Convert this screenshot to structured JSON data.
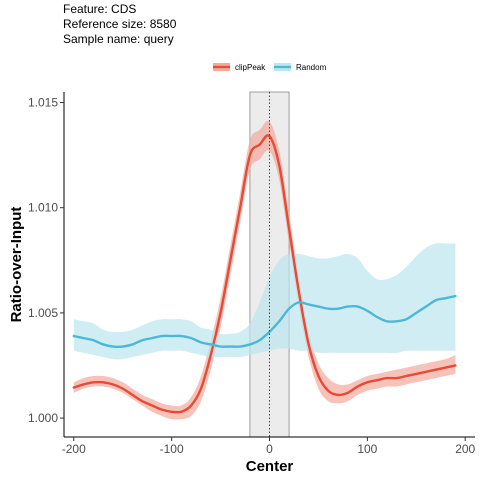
{
  "header": {
    "feature": "Feature: CDS",
    "reference_size": "Reference size: 8580",
    "sample_name": "Sample name: query"
  },
  "chart_data": {
    "type": "line",
    "title": "",
    "xlabel": "Center",
    "ylabel": "Ratio-over-Input",
    "xlim": [
      -210,
      210
    ],
    "ylim": [
      0.9991,
      1.0155
    ],
    "xticks": [
      -200,
      -100,
      0,
      100,
      200
    ],
    "xtick_labels": [
      "-200",
      "-100",
      "0",
      "100",
      "200"
    ],
    "yticks": [
      1.0,
      1.005,
      1.01,
      1.015
    ],
    "ytick_labels": [
      "1.000",
      "1.005",
      "1.010",
      "1.015"
    ],
    "grid": false,
    "legend_position": "top",
    "highlight_region": [
      -20,
      20
    ],
    "center_line_x": 0,
    "colors": {
      "highlight_fill": "#e6e6e6",
      "highlight_stroke": "#888888",
      "center_line": "#3333dd"
    },
    "series": [
      {
        "name": "clipPeak",
        "color": "#e64b35",
        "band_color": "#f4a89c",
        "x": [
          -200,
          -190,
          -180,
          -170,
          -160,
          -150,
          -140,
          -130,
          -120,
          -110,
          -100,
          -90,
          -80,
          -70,
          -60,
          -50,
          -40,
          -30,
          -20,
          -10,
          0,
          10,
          20,
          30,
          40,
          50,
          60,
          70,
          80,
          90,
          100,
          110,
          120,
          130,
          140,
          150,
          160,
          170,
          180,
          190
        ],
        "y": [
          1.00145,
          1.0016,
          1.0017,
          1.0017,
          1.0016,
          1.0014,
          1.0011,
          1.0008,
          1.0006,
          1.0004,
          1.0003,
          1.0003,
          1.0006,
          1.0014,
          1.003,
          1.005,
          1.0075,
          1.01,
          1.0125,
          1.013,
          1.0134,
          1.012,
          1.009,
          1.006,
          1.0035,
          1.002,
          1.0013,
          1.0011,
          1.0012,
          1.0015,
          1.0017,
          1.0018,
          1.0019,
          1.0019,
          1.002,
          1.0021,
          1.0022,
          1.0023,
          1.0024,
          1.0025
        ],
        "lower": [
          1.0012,
          1.0014,
          1.0015,
          1.0015,
          1.0014,
          1.0012,
          1.0009,
          1.0006,
          1.0003,
          1.0001,
          0.99995,
          0.99995,
          1.0001,
          1.0008,
          1.0023,
          1.0043,
          1.0068,
          1.0093,
          1.0118,
          1.0123,
          1.0127,
          1.0113,
          1.0083,
          1.0053,
          1.0029,
          1.0014,
          1.0008,
          1.0007,
          1.0008,
          1.0011,
          1.0013,
          1.0014,
          1.0015,
          1.0015,
          1.0016,
          1.0017,
          1.0018,
          1.0019,
          1.002,
          1.0021
        ],
        "upper": [
          1.0017,
          1.0019,
          1.002,
          1.002,
          1.0019,
          1.0017,
          1.0014,
          1.0011,
          1.0009,
          1.0007,
          1.0006,
          1.0006,
          1.001,
          1.002,
          1.0037,
          1.0057,
          1.0082,
          1.0107,
          1.0132,
          1.0137,
          1.0141,
          1.0127,
          1.0097,
          1.0067,
          1.0041,
          1.0026,
          1.0019,
          1.0016,
          1.0016,
          1.0018,
          1.002,
          1.0021,
          1.0022,
          1.0023,
          1.0024,
          1.0025,
          1.0026,
          1.0027,
          1.0028,
          1.003
        ]
      },
      {
        "name": "Random",
        "color": "#4db8d6",
        "band_color": "#bde5f0",
        "x": [
          -200,
          -190,
          -180,
          -170,
          -160,
          -150,
          -140,
          -130,
          -120,
          -110,
          -100,
          -90,
          -80,
          -70,
          -60,
          -50,
          -40,
          -30,
          -20,
          -10,
          0,
          10,
          20,
          30,
          40,
          50,
          60,
          70,
          80,
          90,
          100,
          110,
          120,
          130,
          140,
          150,
          160,
          170,
          180,
          190
        ],
        "y": [
          1.0039,
          1.0038,
          1.0037,
          1.0035,
          1.0034,
          1.0034,
          1.0035,
          1.0037,
          1.0038,
          1.0039,
          1.0039,
          1.0039,
          1.0038,
          1.0036,
          1.0035,
          1.0034,
          1.0034,
          1.0034,
          1.0035,
          1.0037,
          1.0041,
          1.0046,
          1.0052,
          1.0055,
          1.0054,
          1.0053,
          1.0052,
          1.0052,
          1.0053,
          1.0053,
          1.0051,
          1.0048,
          1.0046,
          1.0046,
          1.0047,
          1.005,
          1.0053,
          1.0056,
          1.0057,
          1.0058
        ],
        "lower": [
          1.0032,
          1.0031,
          1.003,
          1.0029,
          1.0028,
          1.0028,
          1.0029,
          1.003,
          1.0031,
          1.0032,
          1.0032,
          1.0032,
          1.0031,
          1.003,
          1.0029,
          1.0029,
          1.0029,
          1.0029,
          1.003,
          1.0031,
          1.0032,
          1.0033,
          1.0033,
          1.0032,
          1.0032,
          1.0031,
          1.0031,
          1.0031,
          1.0031,
          1.0031,
          1.0031,
          1.0031,
          1.0031,
          1.0031,
          1.0032,
          1.0032,
          1.0032,
          1.0032,
          1.0032,
          1.0032
        ],
        "upper": [
          1.0047,
          1.0046,
          1.0045,
          1.0042,
          1.0041,
          1.0041,
          1.0042,
          1.0044,
          1.0046,
          1.0047,
          1.0047,
          1.0047,
          1.0046,
          1.0043,
          1.0042,
          1.004,
          1.004,
          1.0041,
          1.0045,
          1.0055,
          1.0067,
          1.0075,
          1.0078,
          1.0078,
          1.0077,
          1.0076,
          1.0076,
          1.0077,
          1.0078,
          1.0076,
          1.007,
          1.0066,
          1.0066,
          1.0068,
          1.0072,
          1.0077,
          1.0081,
          1.0083,
          1.0083,
          1.0083
        ]
      }
    ]
  }
}
